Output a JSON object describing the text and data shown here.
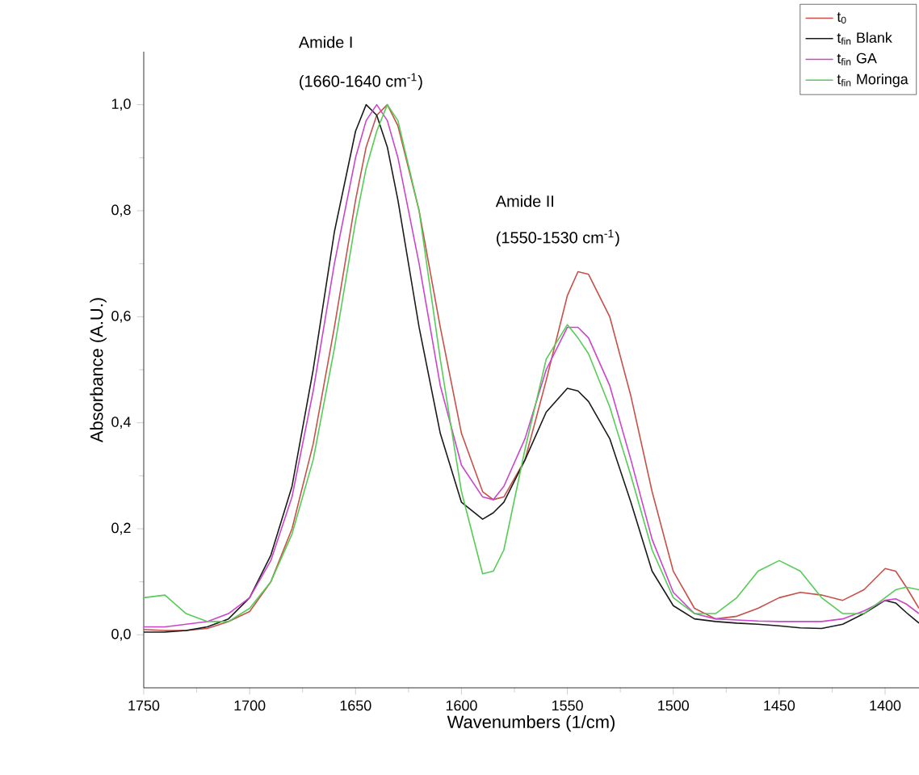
{
  "chart_data": {
    "type": "line",
    "xlabel": "Wavenumbers (1/cm)",
    "ylabel": "Absorbance (A.U.)",
    "annotations": [
      "Amide I",
      "(1660-1640 cm$^{-1}$)",
      "Amide II",
      "(1550-1530 cm$^{-1}$)"
    ],
    "x": [
      1750,
      1740,
      1730,
      1720,
      1710,
      1700,
      1690,
      1680,
      1670,
      1660,
      1650,
      1645,
      1640,
      1635,
      1630,
      1620,
      1610,
      1600,
      1590,
      1585,
      1580,
      1570,
      1560,
      1550,
      1545,
      1540,
      1530,
      1520,
      1510,
      1500,
      1490,
      1480,
      1470,
      1460,
      1450,
      1440,
      1430,
      1420,
      1410,
      1400,
      1395,
      1390,
      1384
    ],
    "series": [
      {
        "name": "t$_{0}$",
        "color": "#c8504a",
        "values": [
          0.01,
          0.008,
          0.008,
          0.012,
          0.025,
          0.044,
          0.1,
          0.2,
          0.36,
          0.58,
          0.82,
          0.92,
          0.98,
          1.0,
          0.96,
          0.8,
          0.58,
          0.38,
          0.27,
          0.255,
          0.26,
          0.33,
          0.48,
          0.64,
          0.685,
          0.68,
          0.6,
          0.45,
          0.27,
          0.12,
          0.05,
          0.03,
          0.035,
          0.05,
          0.07,
          0.08,
          0.075,
          0.065,
          0.085,
          0.125,
          0.12,
          0.09,
          0.05
        ]
      },
      {
        "name": "t$_{fin}$ Blank",
        "color": "#1a1a1a",
        "values": [
          0.005,
          0.005,
          0.008,
          0.015,
          0.03,
          0.07,
          0.15,
          0.28,
          0.5,
          0.76,
          0.95,
          1.0,
          0.98,
          0.92,
          0.82,
          0.58,
          0.38,
          0.25,
          0.218,
          0.23,
          0.25,
          0.33,
          0.42,
          0.465,
          0.46,
          0.44,
          0.37,
          0.25,
          0.12,
          0.055,
          0.03,
          0.025,
          0.022,
          0.02,
          0.017,
          0.013,
          0.012,
          0.02,
          0.04,
          0.065,
          0.06,
          0.042,
          0.022
        ]
      },
      {
        "name": "t$_{fin}$ GA",
        "color": "#cc44cc",
        "values": [
          0.015,
          0.015,
          0.02,
          0.025,
          0.04,
          0.07,
          0.14,
          0.26,
          0.46,
          0.7,
          0.9,
          0.97,
          1.0,
          0.97,
          0.9,
          0.7,
          0.47,
          0.32,
          0.26,
          0.255,
          0.28,
          0.37,
          0.5,
          0.58,
          0.58,
          0.56,
          0.47,
          0.33,
          0.18,
          0.08,
          0.04,
          0.03,
          0.028,
          0.026,
          0.025,
          0.025,
          0.025,
          0.03,
          0.045,
          0.065,
          0.068,
          0.058,
          0.04
        ]
      },
      {
        "name": "t$_{fin}$ Moringa",
        "color": "#55cc55",
        "values": [
          0.07,
          0.075,
          0.04,
          0.025,
          0.025,
          0.05,
          0.1,
          0.19,
          0.33,
          0.54,
          0.78,
          0.88,
          0.95,
          1.0,
          0.97,
          0.8,
          0.52,
          0.27,
          0.115,
          0.12,
          0.16,
          0.35,
          0.52,
          0.585,
          0.56,
          0.53,
          0.43,
          0.3,
          0.16,
          0.07,
          0.04,
          0.04,
          0.07,
          0.12,
          0.14,
          0.12,
          0.07,
          0.04,
          0.04,
          0.07,
          0.085,
          0.09,
          0.085
        ]
      }
    ],
    "xlim": [
      1750,
      1384
    ],
    "xticks": [
      1750,
      1700,
      1650,
      1600,
      1550,
      1500,
      1450,
      1400
    ],
    "ylim": [
      -0.1,
      1.1
    ],
    "yticks": [
      {
        "value": 0,
        "label": "0,0"
      },
      {
        "value": 0.2,
        "label": "0,2"
      },
      {
        "value": 0.4,
        "label": "0,4"
      },
      {
        "value": 0.6,
        "label": "0,6"
      },
      {
        "value": 0.8,
        "label": "0,8"
      },
      {
        "value": 1.0,
        "label": "1,0"
      }
    ],
    "grid": false,
    "legend": "top right",
    "line_style": "solid"
  }
}
